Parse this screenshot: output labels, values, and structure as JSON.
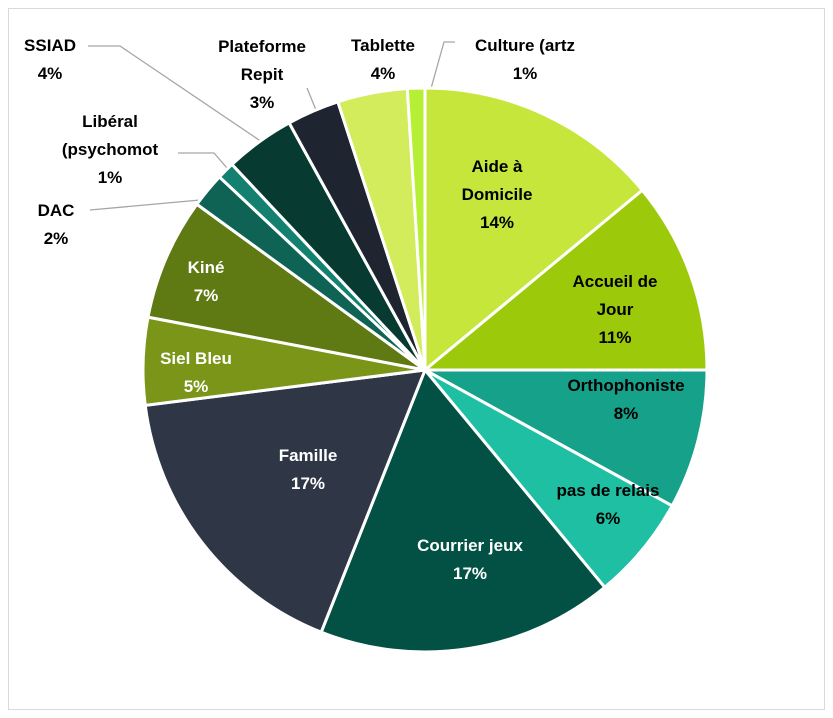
{
  "chart_data": {
    "type": "pie",
    "categories": [
      "Aide à Domicile",
      "Accueil de Jour",
      "Orthophoniste",
      "pas de relais",
      "Courrier jeux",
      "Famille",
      "Siel Bleu",
      "Kiné",
      "DAC",
      "Libéral (psychomot",
      "SSIAD",
      "Plateforme Repit",
      "Tablette",
      "Culture (artz"
    ],
    "values": [
      14,
      11,
      8,
      6,
      17,
      17,
      5,
      7,
      2,
      1,
      4,
      3,
      4,
      1
    ],
    "value_labels": [
      "14%",
      "11%",
      "8%",
      "6%",
      "17%",
      "17%",
      "5%",
      "7%",
      "2%",
      "1%",
      "4%",
      "3%",
      "4%",
      "1%"
    ],
    "colors": [
      "#c6e63c",
      "#9dc90b",
      "#16a18b",
      "#1fbfa3",
      "#035144",
      "#2f3747",
      "#7b9519",
      "#5f7913",
      "#0e6355",
      "#14806f",
      "#073b31",
      "#1e2430",
      "#d3ec5c",
      "#b6f034"
    ]
  }
}
